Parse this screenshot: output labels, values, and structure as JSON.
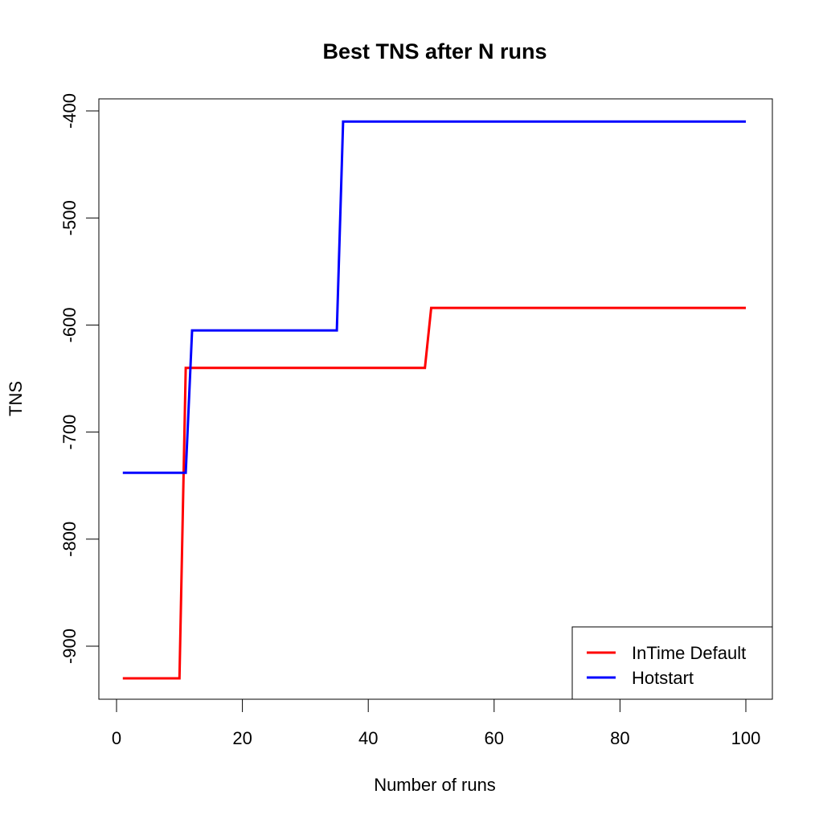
{
  "chart_data": {
    "type": "line",
    "title": "Best TNS after N runs",
    "xlabel": "Number of runs",
    "ylabel": "TNS",
    "xlim": [
      0,
      103
    ],
    "ylim": [
      -950,
      -390
    ],
    "xticks": [
      0,
      20,
      40,
      60,
      80,
      100
    ],
    "yticks": [
      -900,
      -800,
      -700,
      -600,
      -500,
      -400
    ],
    "legend": "bottom-right",
    "grid": false,
    "series": [
      {
        "name": "InTime Default",
        "color": "#ff0000",
        "x": [
          1,
          10,
          11,
          49,
          50,
          100
        ],
        "y": [
          -930,
          -930,
          -640,
          -640,
          -584,
          -584
        ]
      },
      {
        "name": "Hotstart",
        "color": "#0000ff",
        "x": [
          1,
          11,
          12,
          35,
          36,
          100
        ],
        "y": [
          -738,
          -738,
          -605,
          -605,
          -410,
          -410
        ]
      }
    ]
  }
}
